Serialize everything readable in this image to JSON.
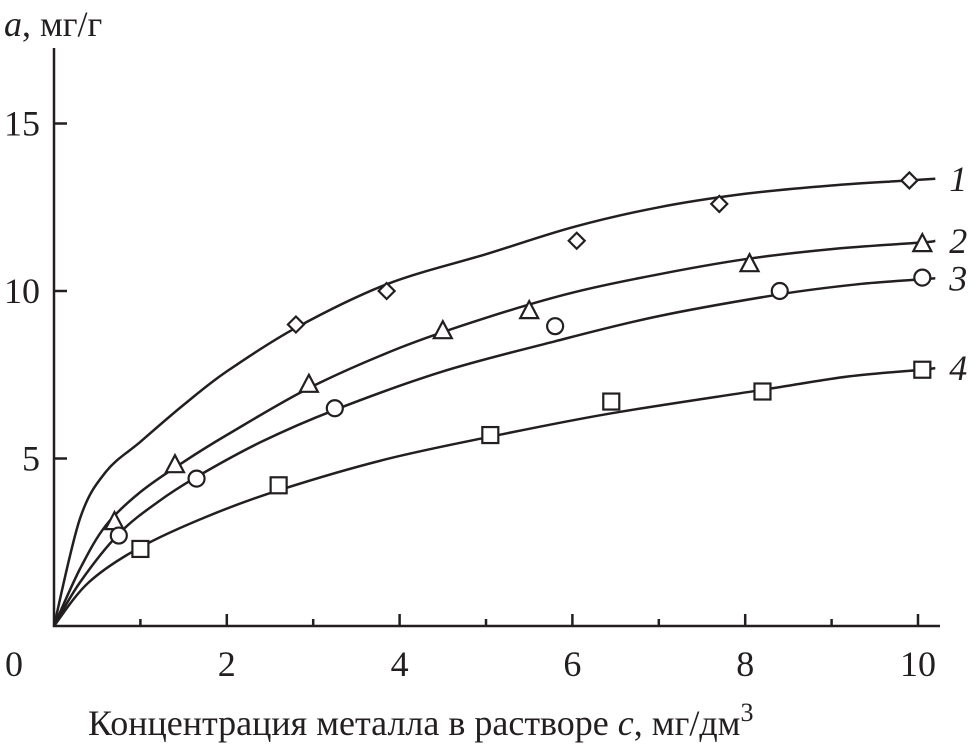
{
  "chart_data": {
    "type": "line",
    "ylabel_italic": "a",
    "ylabel_unit": ", мг/г",
    "xlabel_text": "Концентрация металла в растворе ",
    "xlabel_italic": "c",
    "xlabel_unit": ", мг/дм",
    "xlabel_sup": "3",
    "xlim": [
      0,
      10
    ],
    "ylim": [
      0,
      17
    ],
    "xticks": [
      0,
      2,
      4,
      6,
      8,
      10
    ],
    "yticks": [
      5,
      10,
      15
    ],
    "origin_label": "0",
    "series": [
      {
        "name": "1",
        "marker": "diamond",
        "points": [
          [
            2.8,
            9.0
          ],
          [
            3.85,
            10.0
          ],
          [
            6.05,
            11.5
          ],
          [
            7.7,
            12.6
          ],
          [
            9.9,
            13.3
          ]
        ],
        "curve": [
          [
            0,
            0
          ],
          [
            0.3,
            3.2
          ],
          [
            0.6,
            4.6
          ],
          [
            1.0,
            5.5
          ],
          [
            1.5,
            6.6
          ],
          [
            2.0,
            7.6
          ],
          [
            2.8,
            8.9
          ],
          [
            3.85,
            10.2
          ],
          [
            5.0,
            11.1
          ],
          [
            6.0,
            11.9
          ],
          [
            7.0,
            12.5
          ],
          [
            8.0,
            12.9
          ],
          [
            9.0,
            13.15
          ],
          [
            9.9,
            13.3
          ],
          [
            10.2,
            13.35
          ]
        ]
      },
      {
        "name": "2",
        "marker": "triangle",
        "points": [
          [
            0.7,
            3.1
          ],
          [
            1.4,
            4.8
          ],
          [
            2.95,
            7.2
          ],
          [
            4.5,
            8.8
          ],
          [
            5.5,
            9.4
          ],
          [
            8.05,
            10.8
          ],
          [
            10.05,
            11.4
          ]
        ],
        "curve": [
          [
            0,
            0
          ],
          [
            0.3,
            1.7
          ],
          [
            0.6,
            3.0
          ],
          [
            1.0,
            4.0
          ],
          [
            1.5,
            4.9
          ],
          [
            2.0,
            5.7
          ],
          [
            2.95,
            7.1
          ],
          [
            4.0,
            8.3
          ],
          [
            5.0,
            9.2
          ],
          [
            6.0,
            9.95
          ],
          [
            7.0,
            10.5
          ],
          [
            8.0,
            10.95
          ],
          [
            9.0,
            11.25
          ],
          [
            10.05,
            11.45
          ],
          [
            10.2,
            11.5
          ]
        ]
      },
      {
        "name": "3",
        "marker": "circle",
        "points": [
          [
            0.75,
            2.7
          ],
          [
            1.65,
            4.4
          ],
          [
            3.25,
            6.5
          ],
          [
            5.8,
            8.95
          ],
          [
            8.4,
            10.0
          ],
          [
            10.05,
            10.4
          ]
        ],
        "curve": [
          [
            0,
            0
          ],
          [
            0.3,
            1.3
          ],
          [
            0.75,
            2.75
          ],
          [
            1.2,
            3.7
          ],
          [
            1.65,
            4.45
          ],
          [
            2.4,
            5.5
          ],
          [
            3.25,
            6.45
          ],
          [
            4.5,
            7.6
          ],
          [
            5.8,
            8.5
          ],
          [
            7.0,
            9.25
          ],
          [
            8.4,
            9.9
          ],
          [
            9.3,
            10.2
          ],
          [
            10.05,
            10.35
          ],
          [
            10.2,
            10.38
          ]
        ]
      },
      {
        "name": "4",
        "marker": "square",
        "points": [
          [
            1.0,
            2.3
          ],
          [
            2.6,
            4.2
          ],
          [
            5.05,
            5.7
          ],
          [
            6.45,
            6.7
          ],
          [
            8.2,
            7.0
          ],
          [
            10.05,
            7.65
          ]
        ],
        "curve": [
          [
            0,
            0
          ],
          [
            0.4,
            1.3
          ],
          [
            1.0,
            2.35
          ],
          [
            1.8,
            3.3
          ],
          [
            2.6,
            4.05
          ],
          [
            3.8,
            4.95
          ],
          [
            5.05,
            5.65
          ],
          [
            6.45,
            6.35
          ],
          [
            8.2,
            7.05
          ],
          [
            9.2,
            7.45
          ],
          [
            10.05,
            7.65
          ],
          [
            10.2,
            7.7
          ]
        ]
      }
    ]
  }
}
